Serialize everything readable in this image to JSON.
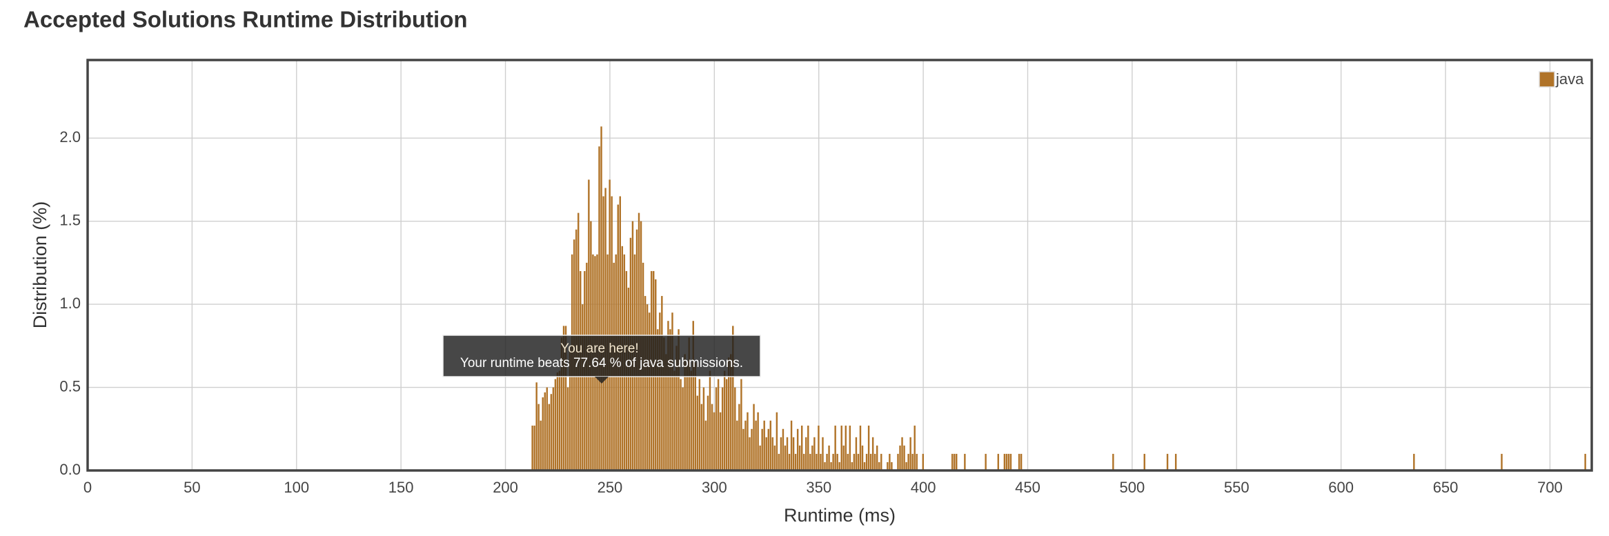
{
  "chart_data": {
    "type": "bar",
    "title": "Accepted Solutions Runtime Distribution",
    "x_label": "Runtime (ms)",
    "y_label": "Distribution (%)",
    "annotations": [
      "You are here!",
      "Your runtime beats 77.64 % of java submissions."
    ],
    "series": [
      {
        "name": "java",
        "color": "#b07328",
        "x": [
          213,
          214,
          215,
          216,
          217,
          218,
          219,
          220,
          221,
          222,
          223,
          224,
          225,
          226,
          227,
          228,
          229,
          230,
          231,
          232,
          233,
          234,
          235,
          236,
          237,
          238,
          239,
          240,
          241,
          242,
          243,
          244,
          245,
          246,
          247,
          248,
          249,
          250,
          251,
          252,
          253,
          254,
          255,
          256,
          257,
          258,
          259,
          260,
          261,
          262,
          263,
          264,
          265,
          266,
          267,
          268,
          269,
          270,
          271,
          272,
          273,
          274,
          275,
          276,
          277,
          278,
          279,
          280,
          281,
          282,
          283,
          284,
          285,
          286,
          287,
          288,
          289,
          290,
          291,
          292,
          293,
          294,
          295,
          296,
          297,
          298,
          299,
          300,
          301,
          302,
          303,
          304,
          305,
          306,
          307,
          308,
          309,
          310,
          311,
          312,
          313,
          314,
          315,
          316,
          317,
          318,
          319,
          320,
          321,
          322,
          323,
          324,
          325,
          326,
          327,
          328,
          329,
          330,
          331,
          332,
          333,
          334,
          335,
          336,
          337,
          338,
          339,
          340,
          341,
          342,
          343,
          344,
          345,
          346,
          347,
          348,
          349,
          350,
          351,
          352,
          353,
          354,
          355,
          356,
          357,
          358,
          359,
          360,
          361,
          362,
          363,
          364,
          365,
          366,
          367,
          368,
          369,
          370,
          371,
          372,
          373,
          374,
          375,
          376,
          377,
          378,
          379,
          380,
          383,
          384,
          385,
          388,
          389,
          390,
          391,
          392,
          393,
          394,
          395,
          396,
          397,
          400,
          414,
          415,
          416,
          420,
          430,
          436,
          439,
          440,
          441,
          442,
          446,
          447,
          491,
          506,
          517,
          521,
          635,
          677,
          717
        ],
        "values": [
          0.27,
          0.27,
          0.53,
          0.4,
          0.3,
          0.44,
          0.47,
          0.5,
          0.4,
          0.46,
          0.5,
          0.55,
          0.59,
          0.6,
          0.8,
          0.87,
          0.87,
          0.5,
          0.75,
          1.3,
          1.39,
          1.45,
          1.55,
          1.2,
          1.0,
          1.2,
          1.25,
          1.75,
          1.5,
          1.3,
          1.29,
          1.3,
          1.95,
          2.07,
          1.65,
          1.7,
          1.3,
          1.75,
          1.65,
          1.25,
          1.3,
          1.6,
          1.65,
          1.35,
          1.3,
          1.2,
          1.1,
          1.4,
          1.5,
          1.3,
          1.45,
          1.55,
          1.5,
          1.25,
          1.05,
          1.0,
          0.95,
          1.2,
          1.2,
          1.15,
          0.85,
          0.95,
          1.05,
          0.8,
          0.7,
          0.9,
          0.85,
          0.95,
          0.6,
          0.75,
          0.85,
          0.55,
          0.5,
          0.7,
          0.65,
          0.8,
          0.6,
          0.9,
          0.65,
          0.45,
          0.55,
          0.4,
          0.5,
          0.3,
          0.45,
          0.6,
          0.4,
          0.35,
          0.5,
          0.55,
          0.35,
          0.5,
          0.6,
          0.55,
          0.68,
          0.7,
          0.87,
          0.5,
          0.3,
          0.4,
          0.55,
          0.25,
          0.3,
          0.35,
          0.2,
          0.25,
          0.4,
          0.3,
          0.35,
          0.15,
          0.25,
          0.3,
          0.2,
          0.25,
          0.3,
          0.2,
          0.15,
          0.35,
          0.1,
          0.2,
          0.25,
          0.15,
          0.2,
          0.1,
          0.3,
          0.2,
          0.1,
          0.25,
          0.15,
          0.27,
          0.1,
          0.2,
          0.27,
          0.1,
          0.15,
          0.2,
          0.1,
          0.27,
          0.1,
          0.2,
          0.05,
          0.1,
          0.15,
          0.05,
          0.1,
          0.27,
          0.1,
          0.05,
          0.27,
          0.15,
          0.27,
          0.1,
          0.27,
          0.05,
          0.1,
          0.2,
          0.1,
          0.27,
          0.15,
          0.05,
          0.1,
          0.27,
          0.1,
          0.2,
          0.1,
          0.15,
          0.05,
          0.1,
          0.05,
          0.1,
          0.05,
          0.1,
          0.15,
          0.2,
          0.15,
          0.05,
          0.1,
          0.2,
          0.1,
          0.27,
          0.1,
          0.1,
          0.1,
          0.1,
          0.1,
          0.1,
          0.1,
          0.1,
          0.1,
          0.1,
          0.1,
          0.1,
          0.1,
          0.1,
          0.1,
          0.1,
          0.1,
          0.1,
          0.1,
          0.1,
          0.1
        ]
      }
    ],
    "xlim": [
      0,
      720
    ],
    "ylim": [
      0,
      2.47
    ],
    "xticks": [
      0,
      50,
      100,
      150,
      200,
      250,
      300,
      350,
      400,
      450,
      500,
      550,
      600,
      650,
      700
    ],
    "yticks": [
      {
        "value": 0,
        "label": "0.0"
      },
      0.5,
      {
        "value": 1,
        "label": "1.0"
      },
      1.5,
      {
        "value": 2,
        "label": "2.0"
      }
    ],
    "grid": true,
    "legend": "top-right"
  }
}
